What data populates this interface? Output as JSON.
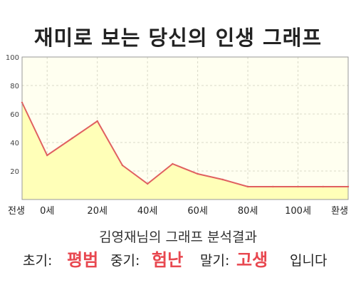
{
  "title": "재미로 보는 당신의 인생 그래프",
  "subtitle": "김영재님의 그래프 분석결과",
  "result": {
    "early_label": "초기:",
    "early_value": "평범",
    "middle_label": "중기:",
    "middle_value": "험난",
    "late_label": "말기:",
    "late_value": "고생",
    "suffix": "입니다"
  },
  "colors": {
    "line": "#e06060",
    "fill": "#ffffb8",
    "plot_bg": "#fffff0",
    "highlight": "#e8474f"
  },
  "chart_data": {
    "type": "area",
    "title": "",
    "xlabel": "",
    "ylabel": "",
    "grid": true,
    "xlim": [
      -10,
      120
    ],
    "ylim": [
      0,
      100
    ],
    "x_ticks": [
      {
        "x": -10,
        "label": "전생"
      },
      {
        "x": 0,
        "label": "0세"
      },
      {
        "x": 20,
        "label": "20세"
      },
      {
        "x": 40,
        "label": "40세"
      },
      {
        "x": 60,
        "label": "60세"
      },
      {
        "x": 80,
        "label": "80세"
      },
      {
        "x": 100,
        "label": "100세"
      },
      {
        "x": 120,
        "label": "환생"
      }
    ],
    "y_ticks": [
      20,
      40,
      60,
      80,
      100
    ],
    "series": [
      {
        "x": [
          -10,
          0,
          10,
          20,
          30,
          40,
          50,
          60,
          70,
          80,
          90,
          100,
          110,
          120
        ],
        "values": [
          68,
          31,
          43,
          55,
          24,
          11,
          25,
          18,
          14,
          9,
          9,
          9,
          9,
          9
        ]
      }
    ]
  }
}
